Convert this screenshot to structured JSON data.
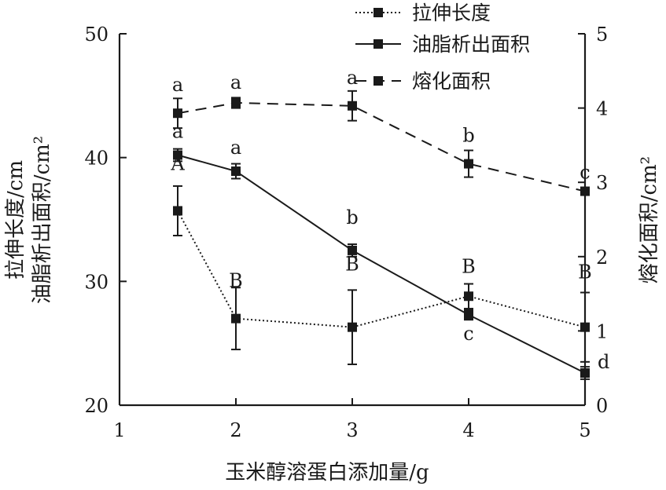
{
  "chart_data": {
    "type": "line",
    "xlabel": "玉米醇溶蛋白添加量/g",
    "ylabel_line1": "拉伸长度/cm",
    "ylabel_line2": "油脂析出面积/cm²",
    "y2label": "熔化面积/cm²",
    "xlim": [
      1,
      5
    ],
    "ylim": [
      20,
      50
    ],
    "y2lim": [
      0,
      5
    ],
    "x_ticks": [
      1,
      2,
      3,
      4,
      5
    ],
    "y_ticks": [
      20,
      30,
      40,
      50
    ],
    "y2_ticks": [
      0,
      1,
      2,
      3,
      4,
      5
    ],
    "grid": false,
    "legend_position": "top-right",
    "x": [
      1.5,
      2,
      3,
      4,
      5
    ],
    "series": [
      {
        "name": "拉伸长度",
        "axis": "left",
        "line_style": "dotted",
        "values": [
          35.7,
          27.0,
          26.3,
          28.8,
          26.3
        ],
        "errors": [
          2.0,
          2.5,
          3.0,
          1.0,
          2.8
        ],
        "labels": [
          "A",
          "B",
          "B",
          "B",
          "B"
        ]
      },
      {
        "name": "油脂析出面积",
        "axis": "left",
        "line_style": "solid",
        "values": [
          40.2,
          38.9,
          32.5,
          27.3,
          22.6
        ],
        "errors": [
          0.5,
          0.6,
          0.5,
          0.4,
          0.5
        ],
        "labels": [
          "a",
          "a",
          "b",
          "c",
          "d"
        ]
      },
      {
        "name": "熔化面积",
        "axis": "right",
        "line_style": "dashed",
        "values": [
          3.93,
          4.07,
          4.03,
          3.25,
          2.88
        ],
        "errors": [
          0.2,
          0.07,
          0.2,
          0.18,
          0.05
        ],
        "labels": [
          "a",
          "a",
          "a",
          "b",
          "c"
        ]
      }
    ]
  },
  "colors": {
    "ink": "#1a1a1a",
    "background": "#ffffff"
  }
}
